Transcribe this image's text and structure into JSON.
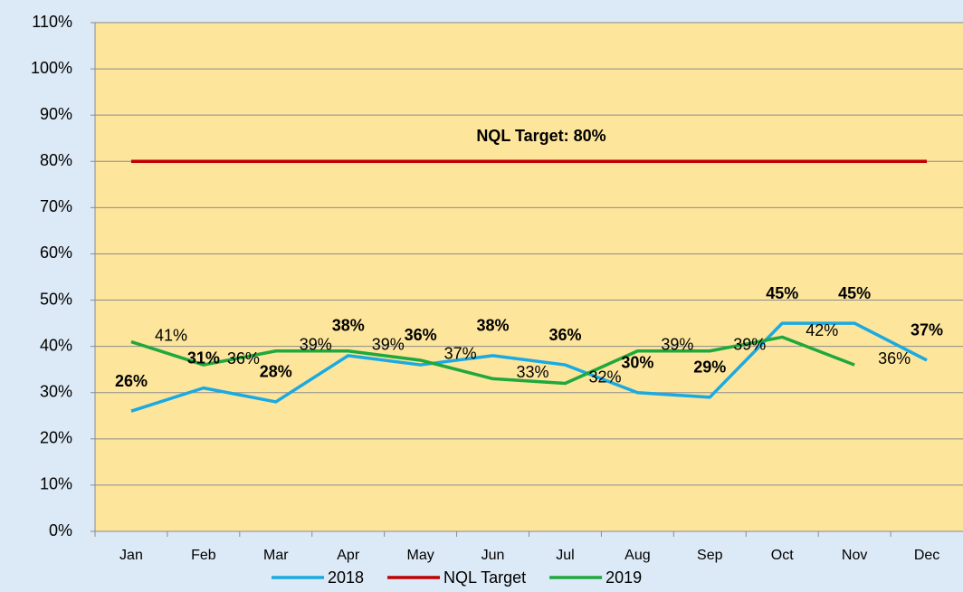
{
  "chart_data": {
    "type": "line",
    "annotation": "NQL Target: 80%",
    "categories": [
      "Jan",
      "Feb",
      "Mar",
      "Apr",
      "May",
      "Jun",
      "Jul",
      "Aug",
      "Sep",
      "Oct",
      "Nov",
      "Dec"
    ],
    "series": [
      {
        "name": "2018",
        "color": "#1aaae2",
        "values": [
          26,
          31,
          28,
          38,
          36,
          38,
          36,
          30,
          29,
          45,
          45,
          37
        ],
        "value_labels": [
          "26%",
          "31%",
          "28%",
          "38%",
          "36%",
          "38%",
          "36%",
          "30%",
          "29%",
          "45%",
          "45%",
          "37%"
        ]
      },
      {
        "name": "NQL Target",
        "color": "#c00000",
        "values": [
          80,
          80,
          80,
          80,
          80,
          80,
          80,
          80,
          80,
          80,
          80,
          80
        ]
      },
      {
        "name": "2019",
        "color": "#1fa83c",
        "values": [
          41,
          36,
          39,
          39,
          37,
          33,
          32,
          39,
          39,
          42,
          36,
          null
        ],
        "value_labels": [
          "41%",
          "36%",
          "39%",
          "39%",
          "37%",
          "33%",
          "32%",
          "39%",
          "39%",
          "42%",
          "36%",
          null
        ]
      }
    ],
    "ylim": [
      0,
      110
    ],
    "yticks": [
      {
        "value": 0,
        "label": "0%"
      },
      {
        "value": 10,
        "label": "10%"
      },
      {
        "value": 20,
        "label": "20%"
      },
      {
        "value": 30,
        "label": "30%"
      },
      {
        "value": 40,
        "label": "40%"
      },
      {
        "value": 50,
        "label": "50%"
      },
      {
        "value": 60,
        "label": "60%"
      },
      {
        "value": 70,
        "label": "70%"
      },
      {
        "value": 80,
        "label": "80%"
      },
      {
        "value": 90,
        "label": "90%"
      },
      {
        "value": 100,
        "label": "100%"
      },
      {
        "value": 110,
        "label": "110%"
      }
    ],
    "grid": true
  }
}
